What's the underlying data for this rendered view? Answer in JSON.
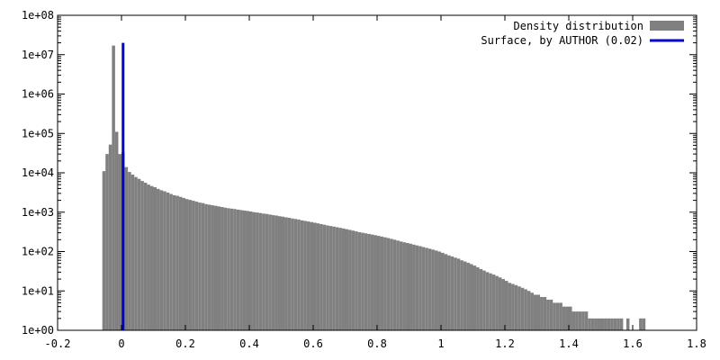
{
  "chart_data": {
    "type": "bar",
    "title": "",
    "xlabel": "",
    "ylabel": "",
    "y_scale": "log",
    "xlim": [
      -0.2,
      1.8
    ],
    "ylim": [
      1,
      100000000
    ],
    "x_ticks": [
      -0.2,
      0,
      0.2,
      0.4,
      0.6,
      0.8,
      1,
      1.2,
      1.4,
      1.6,
      1.8
    ],
    "x_tick_labels": [
      "-0.2",
      "0",
      "0.2",
      "0.4",
      "0.6",
      "0.8",
      "1",
      "1.2",
      "1.4",
      "1.6",
      "1.8"
    ],
    "y_ticks": [
      1,
      10,
      100,
      1000,
      10000,
      100000,
      1000000,
      10000000,
      100000000
    ],
    "y_tick_labels": [
      "1e+00",
      "1e+01",
      "1e+02",
      "1e+03",
      "1e+04",
      "1e+05",
      "1e+06",
      "1e+07",
      "1e+08"
    ],
    "grid": false,
    "legend_position": "top-right",
    "bin_width": 0.01,
    "series": [
      {
        "name": "Density distribution",
        "kind": "histogram",
        "color": "#808080",
        "bins": [
          [
            -0.055,
            11000
          ],
          [
            -0.045,
            30000
          ],
          [
            -0.035,
            52000
          ],
          [
            -0.025,
            17000000
          ],
          [
            -0.015,
            110000
          ],
          [
            -0.005,
            30000
          ],
          [
            0.005,
            33000
          ],
          [
            0.015,
            14000
          ],
          [
            0.025,
            10500
          ],
          [
            0.035,
            9000
          ],
          [
            0.045,
            7800
          ],
          [
            0.055,
            7000
          ],
          [
            0.065,
            6200
          ],
          [
            0.075,
            5600
          ],
          [
            0.085,
            5000
          ],
          [
            0.095,
            4600
          ],
          [
            0.105,
            4300
          ],
          [
            0.115,
            3900
          ],
          [
            0.125,
            3600
          ],
          [
            0.135,
            3400
          ],
          [
            0.145,
            3150
          ],
          [
            0.155,
            2900
          ],
          [
            0.165,
            2700
          ],
          [
            0.175,
            2600
          ],
          [
            0.185,
            2450
          ],
          [
            0.195,
            2300
          ],
          [
            0.205,
            2150
          ],
          [
            0.215,
            2050
          ],
          [
            0.225,
            1950
          ],
          [
            0.235,
            1850
          ],
          [
            0.245,
            1750
          ],
          [
            0.255,
            1700
          ],
          [
            0.265,
            1600
          ],
          [
            0.275,
            1550
          ],
          [
            0.285,
            1500
          ],
          [
            0.295,
            1450
          ],
          [
            0.305,
            1400
          ],
          [
            0.315,
            1350
          ],
          [
            0.325,
            1300
          ],
          [
            0.335,
            1260
          ],
          [
            0.345,
            1230
          ],
          [
            0.355,
            1200
          ],
          [
            0.365,
            1160
          ],
          [
            0.375,
            1130
          ],
          [
            0.385,
            1100
          ],
          [
            0.395,
            1070
          ],
          [
            0.405,
            1040
          ],
          [
            0.415,
            1000
          ],
          [
            0.425,
            980
          ],
          [
            0.435,
            950
          ],
          [
            0.445,
            920
          ],
          [
            0.455,
            900
          ],
          [
            0.465,
            870
          ],
          [
            0.475,
            840
          ],
          [
            0.485,
            820
          ],
          [
            0.495,
            790
          ],
          [
            0.505,
            770
          ],
          [
            0.515,
            740
          ],
          [
            0.525,
            720
          ],
          [
            0.535,
            690
          ],
          [
            0.545,
            670
          ],
          [
            0.555,
            650
          ],
          [
            0.565,
            620
          ],
          [
            0.575,
            600
          ],
          [
            0.585,
            580
          ],
          [
            0.595,
            560
          ],
          [
            0.605,
            540
          ],
          [
            0.615,
            520
          ],
          [
            0.625,
            500
          ],
          [
            0.635,
            480
          ],
          [
            0.645,
            460
          ],
          [
            0.655,
            445
          ],
          [
            0.665,
            430
          ],
          [
            0.675,
            415
          ],
          [
            0.685,
            400
          ],
          [
            0.695,
            385
          ],
          [
            0.705,
            370
          ],
          [
            0.715,
            355
          ],
          [
            0.725,
            340
          ],
          [
            0.735,
            325
          ],
          [
            0.745,
            310
          ],
          [
            0.755,
            300
          ],
          [
            0.765,
            290
          ],
          [
            0.775,
            280
          ],
          [
            0.785,
            270
          ],
          [
            0.795,
            260
          ],
          [
            0.805,
            250
          ],
          [
            0.815,
            240
          ],
          [
            0.825,
            230
          ],
          [
            0.835,
            220
          ],
          [
            0.845,
            210
          ],
          [
            0.855,
            200
          ],
          [
            0.865,
            190
          ],
          [
            0.875,
            180
          ],
          [
            0.885,
            172
          ],
          [
            0.895,
            165
          ],
          [
            0.905,
            158
          ],
          [
            0.915,
            150
          ],
          [
            0.925,
            143
          ],
          [
            0.935,
            137
          ],
          [
            0.945,
            130
          ],
          [
            0.955,
            124
          ],
          [
            0.965,
            118
          ],
          [
            0.975,
            112
          ],
          [
            0.985,
            106
          ],
          [
            0.995,
            100
          ],
          [
            1.005,
            93
          ],
          [
            1.015,
            86
          ],
          [
            1.025,
            80
          ],
          [
            1.035,
            75
          ],
          [
            1.045,
            70
          ],
          [
            1.055,
            66
          ],
          [
            1.065,
            60
          ],
          [
            1.075,
            56
          ],
          [
            1.085,
            52
          ],
          [
            1.095,
            48
          ],
          [
            1.105,
            44
          ],
          [
            1.115,
            40
          ],
          [
            1.125,
            36
          ],
          [
            1.135,
            33
          ],
          [
            1.145,
            30
          ],
          [
            1.155,
            28
          ],
          [
            1.165,
            26
          ],
          [
            1.175,
            24
          ],
          [
            1.185,
            22
          ],
          [
            1.195,
            20
          ],
          [
            1.205,
            18
          ],
          [
            1.215,
            16
          ],
          [
            1.225,
            15
          ],
          [
            1.235,
            14
          ],
          [
            1.245,
            13
          ],
          [
            1.255,
            12
          ],
          [
            1.265,
            11
          ],
          [
            1.275,
            10
          ],
          [
            1.285,
            9
          ],
          [
            1.295,
            8
          ],
          [
            1.305,
            8
          ],
          [
            1.315,
            7
          ],
          [
            1.325,
            7
          ],
          [
            1.335,
            6
          ],
          [
            1.345,
            6
          ],
          [
            1.355,
            5
          ],
          [
            1.365,
            5
          ],
          [
            1.375,
            5
          ],
          [
            1.385,
            4
          ],
          [
            1.395,
            4
          ],
          [
            1.405,
            4
          ],
          [
            1.415,
            3
          ],
          [
            1.425,
            3
          ],
          [
            1.435,
            3
          ],
          [
            1.445,
            3
          ],
          [
            1.455,
            3
          ],
          [
            1.465,
            2
          ],
          [
            1.475,
            2
          ],
          [
            1.485,
            2
          ],
          [
            1.495,
            2
          ],
          [
            1.505,
            2
          ],
          [
            1.515,
            2
          ],
          [
            1.525,
            2
          ],
          [
            1.535,
            2
          ],
          [
            1.545,
            2
          ],
          [
            1.555,
            2
          ],
          [
            1.565,
            2
          ],
          [
            1.585,
            2
          ],
          [
            1.625,
            2
          ],
          [
            1.635,
            2
          ]
        ]
      },
      {
        "name": "Surface, by AUTHOR (0.02)",
        "kind": "vline",
        "color": "#0000cc",
        "x": 0.005,
        "y_top": 20000000
      }
    ]
  }
}
